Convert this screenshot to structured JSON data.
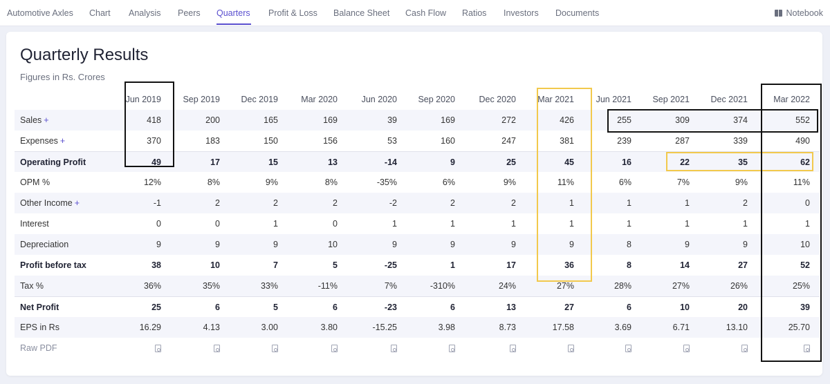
{
  "nav": {
    "items": [
      "Automotive Axles",
      "Chart",
      "Analysis",
      "Peers",
      "Quarters",
      "Profit & Loss",
      "Balance Sheet",
      "Cash Flow",
      "Ratios",
      "Investors",
      "Documents"
    ],
    "active": "Quarters",
    "notebook": "Notebook"
  },
  "page": {
    "title": "Quarterly Results",
    "subtitle": "Figures in Rs. Crores"
  },
  "table": {
    "columns": [
      "Jun 2019",
      "Sep 2019",
      "Dec 2019",
      "Mar 2020",
      "Jun 2020",
      "Sep 2020",
      "Dec 2020",
      "Mar 2021",
      "Jun 2021",
      "Sep 2021",
      "Dec 2021",
      "Mar 2022"
    ],
    "rows": [
      {
        "label": "Sales",
        "plus": "+",
        "values": [
          "418",
          "200",
          "165",
          "169",
          "39",
          "169",
          "272",
          "426",
          "255",
          "309",
          "374",
          "552"
        ]
      },
      {
        "label": "Expenses",
        "plus": "+",
        "values": [
          "370",
          "183",
          "150",
          "156",
          "53",
          "160",
          "247",
          "381",
          "239",
          "287",
          "339",
          "490"
        ]
      },
      {
        "label": "Operating Profit",
        "plus": "",
        "values": [
          "49",
          "17",
          "15",
          "13",
          "-14",
          "9",
          "25",
          "45",
          "16",
          "22",
          "35",
          "62"
        ]
      },
      {
        "label": "OPM %",
        "plus": "",
        "values": [
          "12%",
          "8%",
          "9%",
          "8%",
          "-35%",
          "6%",
          "9%",
          "11%",
          "6%",
          "7%",
          "9%",
          "11%"
        ]
      },
      {
        "label": "Other Income",
        "plus": "+",
        "values": [
          "-1",
          "2",
          "2",
          "2",
          "-2",
          "2",
          "2",
          "1",
          "1",
          "1",
          "2",
          "0"
        ]
      },
      {
        "label": "Interest",
        "plus": "",
        "values": [
          "0",
          "0",
          "1",
          "0",
          "1",
          "1",
          "1",
          "1",
          "1",
          "1",
          "1",
          "1"
        ]
      },
      {
        "label": "Depreciation",
        "plus": "",
        "values": [
          "9",
          "9",
          "9",
          "10",
          "9",
          "9",
          "9",
          "9",
          "8",
          "9",
          "9",
          "10"
        ]
      },
      {
        "label": "Profit before tax",
        "plus": "",
        "values": [
          "38",
          "10",
          "7",
          "5",
          "-25",
          "1",
          "17",
          "36",
          "8",
          "14",
          "27",
          "52"
        ]
      },
      {
        "label": "Tax %",
        "plus": "",
        "values": [
          "36%",
          "35%",
          "33%",
          "-11%",
          "7%",
          "-310%",
          "24%",
          "27%",
          "28%",
          "27%",
          "26%",
          "25%"
        ]
      },
      {
        "label": "Net Profit",
        "plus": "",
        "values": [
          "25",
          "6",
          "5",
          "6",
          "-23",
          "6",
          "13",
          "27",
          "6",
          "10",
          "20",
          "39"
        ]
      },
      {
        "label": "EPS in Rs",
        "plus": "",
        "values": [
          "16.29",
          "4.13",
          "3.00",
          "3.80",
          "-15.25",
          "3.98",
          "8.73",
          "17.58",
          "3.69",
          "6.71",
          "13.10",
          "25.70"
        ]
      }
    ],
    "raw_pdf_label": "Raw PDF"
  },
  "colors": {
    "accent": "#5a4fcf",
    "highlight_black": "#111111",
    "highlight_yellow": "#f2c94c"
  }
}
